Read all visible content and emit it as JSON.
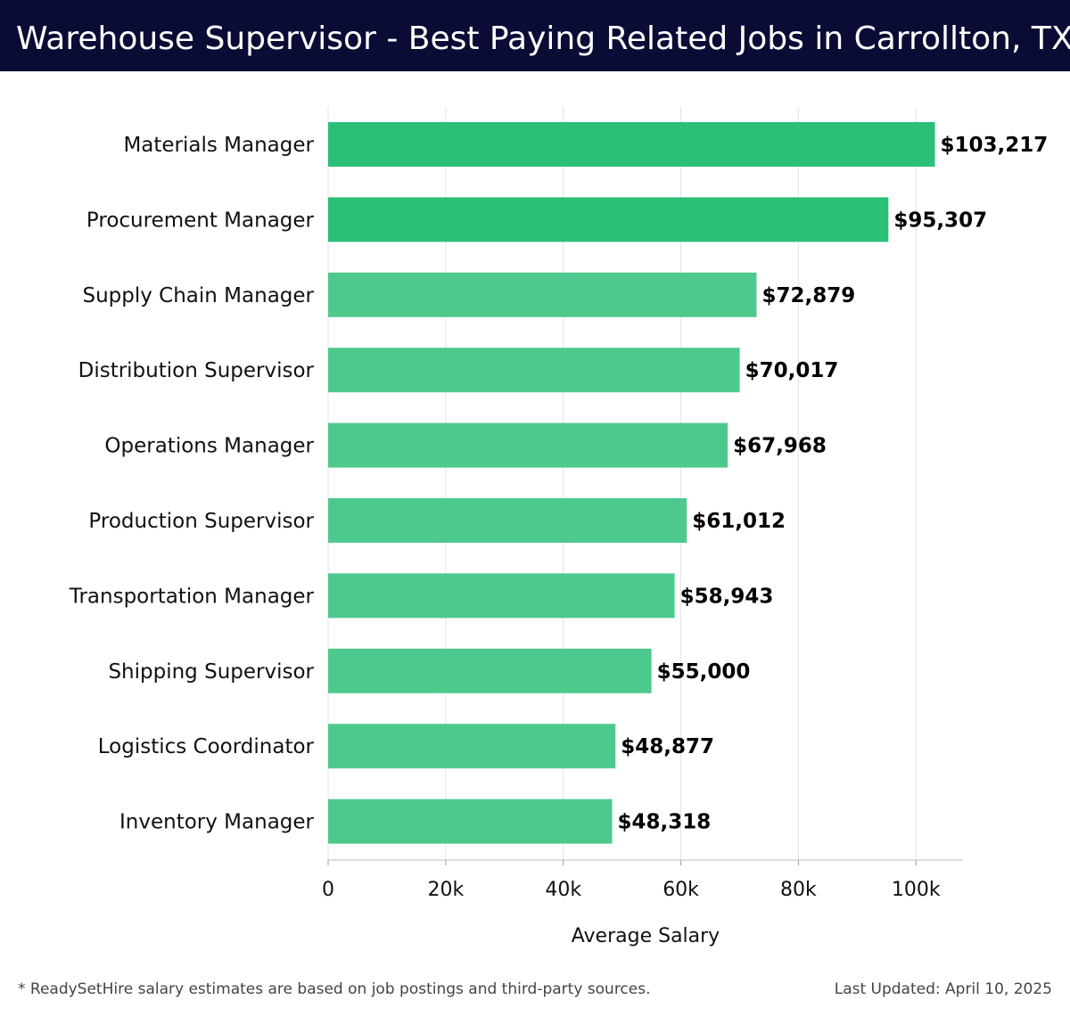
{
  "header": {
    "title": "Warehouse Supervisor - Best Paying Related Jobs in Carrollton, TX"
  },
  "footer": {
    "note": "* ReadySetHire salary estimates are based on job postings and third-party sources.",
    "updated": "Last Updated: April 10, 2025"
  },
  "colors": {
    "header_bg": "#0b0c35",
    "bar_top": "#2bbf78",
    "bar": "#4ec98d",
    "grid": "#e3e3e3"
  },
  "chart_data": {
    "type": "bar",
    "orientation": "horizontal",
    "title": "Warehouse Supervisor - Best Paying Related Jobs in Carrollton, TX",
    "xlabel": "Average Salary",
    "ylabel": "",
    "xlim": [
      0,
      108000
    ],
    "grid": true,
    "ticks": [
      {
        "value": 0,
        "label": "0"
      },
      {
        "value": 20000,
        "label": "20k"
      },
      {
        "value": 40000,
        "label": "40k"
      },
      {
        "value": 60000,
        "label": "60k"
      },
      {
        "value": 80000,
        "label": "80k"
      },
      {
        "value": 100000,
        "label": "100k"
      }
    ],
    "categories": [
      "Materials Manager",
      "Procurement Manager",
      "Supply Chain Manager",
      "Distribution Supervisor",
      "Operations Manager",
      "Production Supervisor",
      "Transportation Manager",
      "Shipping Supervisor",
      "Logistics Coordinator",
      "Inventory Manager"
    ],
    "values": [
      103217,
      95307,
      72879,
      70017,
      67968,
      61012,
      58943,
      55000,
      48877,
      48318
    ],
    "value_labels": [
      "$103,217",
      "$95,307",
      "$72,879",
      "$70,017",
      "$67,968",
      "$61,012",
      "$58,943",
      "$55,000",
      "$48,877",
      "$48,318"
    ]
  }
}
